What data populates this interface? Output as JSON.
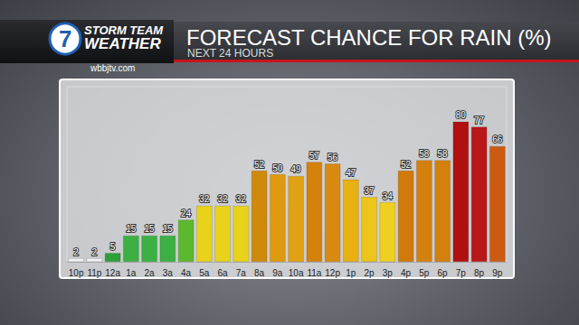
{
  "chart_data": {
    "type": "bar",
    "title": "FORECAST CHANCE FOR RAIN (%)",
    "subtitle": "NEXT 24 HOURS",
    "logo": {
      "number": "7",
      "line1": "STORM TEAM",
      "line2": "WEATHER",
      "website": "wbbjtv.com"
    },
    "categories": [
      "10p",
      "11p",
      "12a",
      "1a",
      "2a",
      "3a",
      "4a",
      "5a",
      "6a",
      "7a",
      "8a",
      "9a",
      "10a",
      "11a",
      "12p",
      "1p",
      "2p",
      "3p",
      "4p",
      "5p",
      "6p",
      "7p",
      "8p",
      "9p"
    ],
    "values": [
      2,
      2,
      5,
      15,
      15,
      15,
      24,
      32,
      32,
      32,
      52,
      50,
      49,
      57,
      56,
      47,
      37,
      34,
      52,
      58,
      58,
      80,
      77,
      66
    ],
    "colors": [
      "#f2f2f2",
      "#f2f2f2",
      "#2e9e3a",
      "#3cb043",
      "#3cb043",
      "#3cb043",
      "#5cb82e",
      "#e8d21a",
      "#e8d21a",
      "#e8d21a",
      "#cf8a0c",
      "#e09a10",
      "#e0a212",
      "#d4820c",
      "#d88a10",
      "#e8b010",
      "#ecc41a",
      "#eed020",
      "#d07a0c",
      "#d4800e",
      "#d4800e",
      "#b01010",
      "#b81818",
      "#cc5a10"
    ],
    "ylim": [
      0,
      100
    ],
    "grid": false,
    "data_labels": true,
    "tick_labels": "x"
  }
}
